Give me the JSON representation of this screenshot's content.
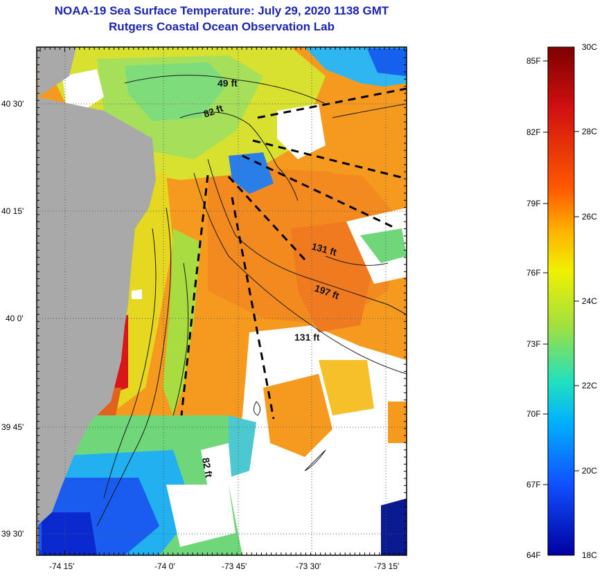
{
  "title": {
    "line1": "NOAA-19 Sea Surface Temperature:  July 29, 2020 1138 GMT",
    "line2": "Rutgers Coastal Ocean Observation Lab"
  },
  "map": {
    "lat_ticks": [
      "40 30'",
      "40 15'",
      "40 0'",
      "39 45'",
      "39 30'"
    ],
    "lon_ticks": [
      "-74 15'",
      "-74 0'",
      "-73 45'",
      "-73 30'",
      "-73 15'"
    ],
    "depth_labels": [
      "49 ft",
      "82 ft",
      "131 ft",
      "197 ft",
      "131 ft",
      "82 ft"
    ],
    "colors": {
      "land": "#a9a9a9",
      "cloud": "#ffffff",
      "warm": "#f59a1e",
      "cool": "#2b6cf0"
    }
  },
  "colorbar": {
    "fahrenheit": [
      "85F",
      "82F",
      "79F",
      "76F",
      "73F",
      "70F",
      "67F",
      "64F"
    ],
    "celsius": [
      "30C",
      "28C",
      "26C",
      "24C",
      "22C",
      "20C",
      "18C"
    ],
    "stops": [
      "#7f0000",
      "#d01010",
      "#ff5a00",
      "#ffb000",
      "#f0f000",
      "#a0e040",
      "#20e0c0",
      "#00b0ff",
      "#1050ff",
      "#0000a0"
    ]
  }
}
